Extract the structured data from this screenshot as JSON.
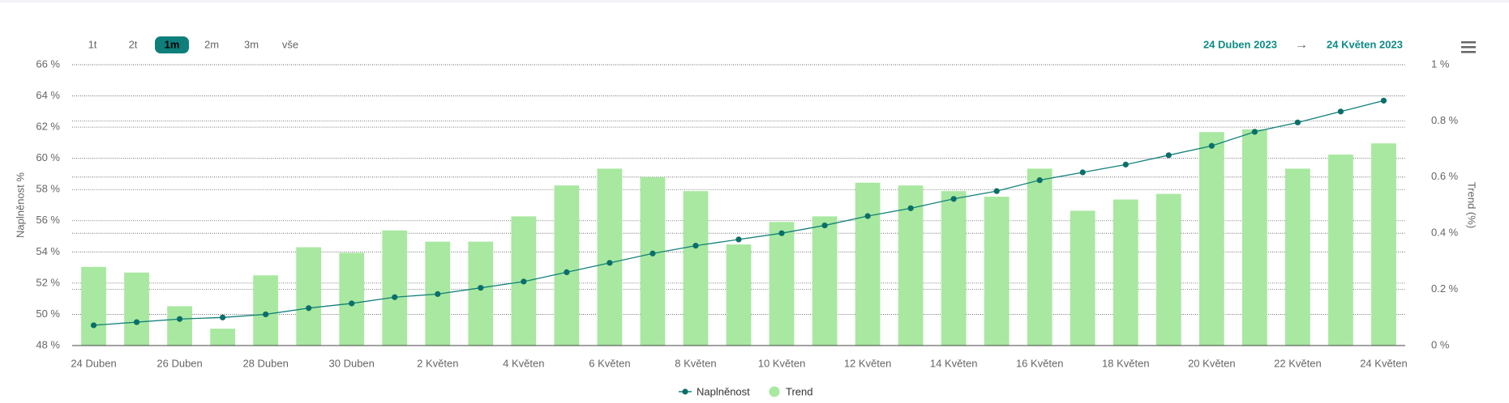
{
  "chart_data": {
    "type": "combo",
    "range_selector": {
      "buttons": [
        "1t",
        "2t",
        "1m",
        "2m",
        "3m",
        "vše"
      ],
      "selected": 2
    },
    "date_range": {
      "from": "24 Duben 2023",
      "separator": "→",
      "to": "24 Květen 2023"
    },
    "y_label": "Naplněnost %",
    "y2_label": "Trend (%)",
    "categories": [
      "24 Duben",
      null,
      "26 Duben",
      null,
      "28 Duben",
      null,
      "30 Duben",
      null,
      "2 Květen",
      null,
      "4 Květen",
      null,
      "6 Květen",
      null,
      "8 Květen",
      null,
      "10 Květen",
      null,
      "12 Květen",
      null,
      "14 Květen",
      null,
      "16 Květen",
      null,
      "18 Květen",
      null,
      "20 Květen",
      null,
      "22 Květen",
      null,
      "24 Květen"
    ],
    "series": [
      {
        "name": "Naplněnost",
        "type": "line",
        "color": "#12807a",
        "values": [
          49.3,
          49.5,
          49.7,
          49.8,
          50.0,
          50.4,
          50.7,
          51.1,
          51.3,
          51.7,
          52.1,
          52.7,
          53.3,
          53.9,
          54.4,
          54.8,
          55.2,
          55.7,
          56.3,
          56.8,
          57.4,
          57.9,
          58.6,
          59.1,
          59.6,
          60.2,
          60.8,
          61.7,
          62.3,
          63.0,
          63.7
        ]
      },
      {
        "name": "Trend",
        "type": "bar",
        "axis": "y2",
        "color": "#a8e8a0",
        "values": [
          0.28,
          0.26,
          0.14,
          0.06,
          0.25,
          0.35,
          0.33,
          0.41,
          0.37,
          0.37,
          0.46,
          0.57,
          0.63,
          0.6,
          0.55,
          0.36,
          0.44,
          0.46,
          0.58,
          0.57,
          0.55,
          0.53,
          0.63,
          0.48,
          0.52,
          0.54,
          0.76,
          0.77,
          0.63,
          0.68,
          0.72
        ]
      }
    ],
    "ylim": [
      48,
      66
    ],
    "yticks": [
      {
        "value": 48,
        "label": "48 %"
      },
      {
        "value": 50,
        "label": "50 %"
      },
      {
        "value": 52,
        "label": "52 %"
      },
      {
        "value": 54,
        "label": "54 %"
      },
      {
        "value": 56,
        "label": "56 %"
      },
      {
        "value": 58,
        "label": "58 %"
      },
      {
        "value": 60,
        "label": "60 %"
      },
      {
        "value": 62,
        "label": "62 %"
      },
      {
        "value": 64,
        "label": "64 %"
      },
      {
        "value": 66,
        "label": "66 %"
      }
    ],
    "y2lim": [
      0,
      1
    ],
    "y2ticks": [
      {
        "value": 0,
        "label": "0 %"
      },
      {
        "value": 0.2,
        "label": "0.2 %"
      },
      {
        "value": 0.4,
        "label": "0.4 %"
      },
      {
        "value": 0.6,
        "label": "0.6 %"
      },
      {
        "value": 0.8,
        "label": "0.8 %"
      },
      {
        "value": 1,
        "label": "1 %"
      }
    ],
    "grid": true,
    "legend": "bottom"
  }
}
